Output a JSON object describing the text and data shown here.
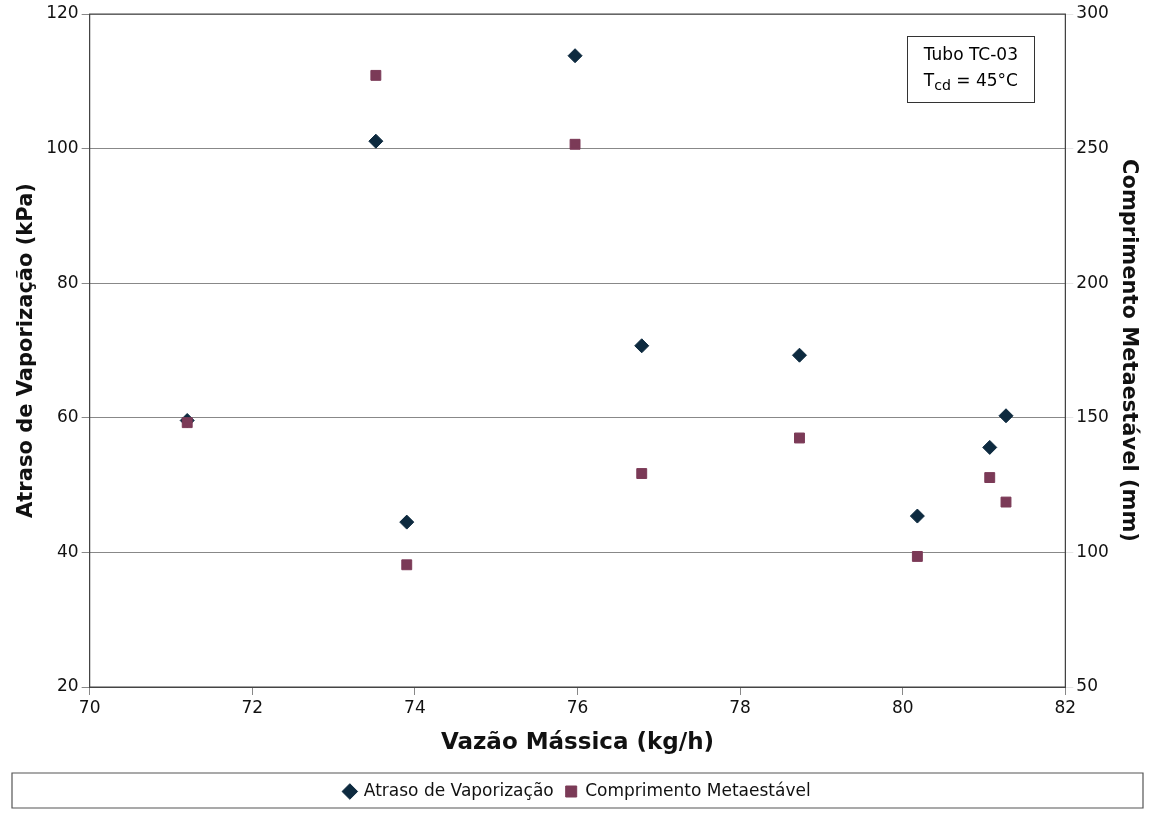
{
  "chart_data": {
    "type": "scatter",
    "xlabel": "Vazão Mássica (kg/h)",
    "ylabel": "Atraso de Vaporização (kPa)",
    "y2label": "Comprimento Metaestável (mm)",
    "series": [
      {
        "name": "Atraso de Vaporização",
        "color": "#0d2a3f",
        "marker": "diamond",
        "x": [
          71.2,
          73.52,
          73.9,
          75.97,
          76.79,
          78.73,
          80.18,
          81.07,
          81.27
        ],
        "values": [
          59.6,
          101.1,
          44.5,
          113.8,
          70.7,
          69.3,
          45.4,
          55.6,
          60.3
        ]
      },
      {
        "name": "Comprimento Metaestável",
        "color": "#7b3a57",
        "marker": "square",
        "axis": "y2",
        "x": [
          71.2,
          73.52,
          73.9,
          75.97,
          76.79,
          78.73,
          80.18,
          81.07,
          81.27
        ],
        "values": [
          148.2,
          277.2,
          95.4,
          251.6,
          129.3,
          142.5,
          98.5,
          127.8,
          118.7
        ]
      }
    ],
    "xlim": [
      70,
      82
    ],
    "xticks": [
      70,
      72,
      74,
      76,
      78,
      80,
      82
    ],
    "ylim": [
      20,
      120
    ],
    "yticks": [
      20,
      40,
      60,
      80,
      100,
      120
    ],
    "y2lim": [
      50,
      300
    ],
    "y2ticks": [
      50,
      100,
      150,
      200,
      250,
      300
    ],
    "grid": "y",
    "legend": "bottom",
    "annotations": [
      "Tubo TC-03",
      "T$_{cd}$ = 45°C"
    ]
  }
}
